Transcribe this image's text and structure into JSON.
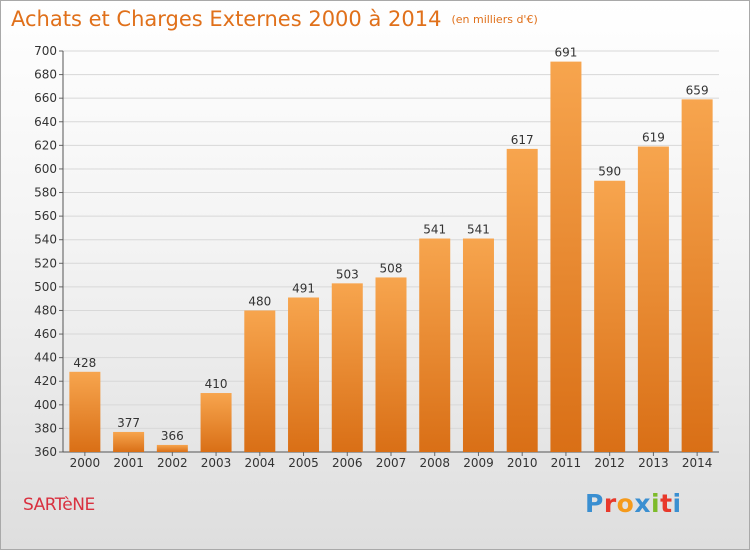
{
  "title": "Achats et Charges Externes 2000 à 2014",
  "subtitle": "(en milliers d'€)",
  "town": "SARTèNE",
  "logo": {
    "text": "Proxiti",
    "letters": [
      "P",
      "r",
      "o",
      "x",
      "i",
      "t",
      "i"
    ],
    "colors": [
      "#3a8fd1",
      "#e8392b",
      "#f59a1b",
      "#3a8fd1",
      "#7dbb2a",
      "#e8392b",
      "#3a8fd1"
    ]
  },
  "colors": {
    "title": "#e0701a",
    "town": "#d9303f",
    "bar_light": "#f7a54e",
    "bar_dark": "#d96f16",
    "grid": "#d8d8d8"
  },
  "chart_data": {
    "type": "bar",
    "categories": [
      "2000",
      "2001",
      "2002",
      "2003",
      "2004",
      "2005",
      "2006",
      "2007",
      "2008",
      "2009",
      "2010",
      "2011",
      "2012",
      "2013",
      "2014"
    ],
    "values": [
      428,
      377,
      366,
      410,
      480,
      491,
      503,
      508,
      541,
      541,
      617,
      691,
      590,
      619,
      659
    ],
    "ylim": [
      360,
      700
    ],
    "yticks": [
      360,
      380,
      400,
      420,
      440,
      460,
      480,
      500,
      520,
      540,
      560,
      580,
      600,
      620,
      640,
      660,
      680,
      700
    ],
    "grid": true,
    "xlabel": "",
    "ylabel": ""
  }
}
